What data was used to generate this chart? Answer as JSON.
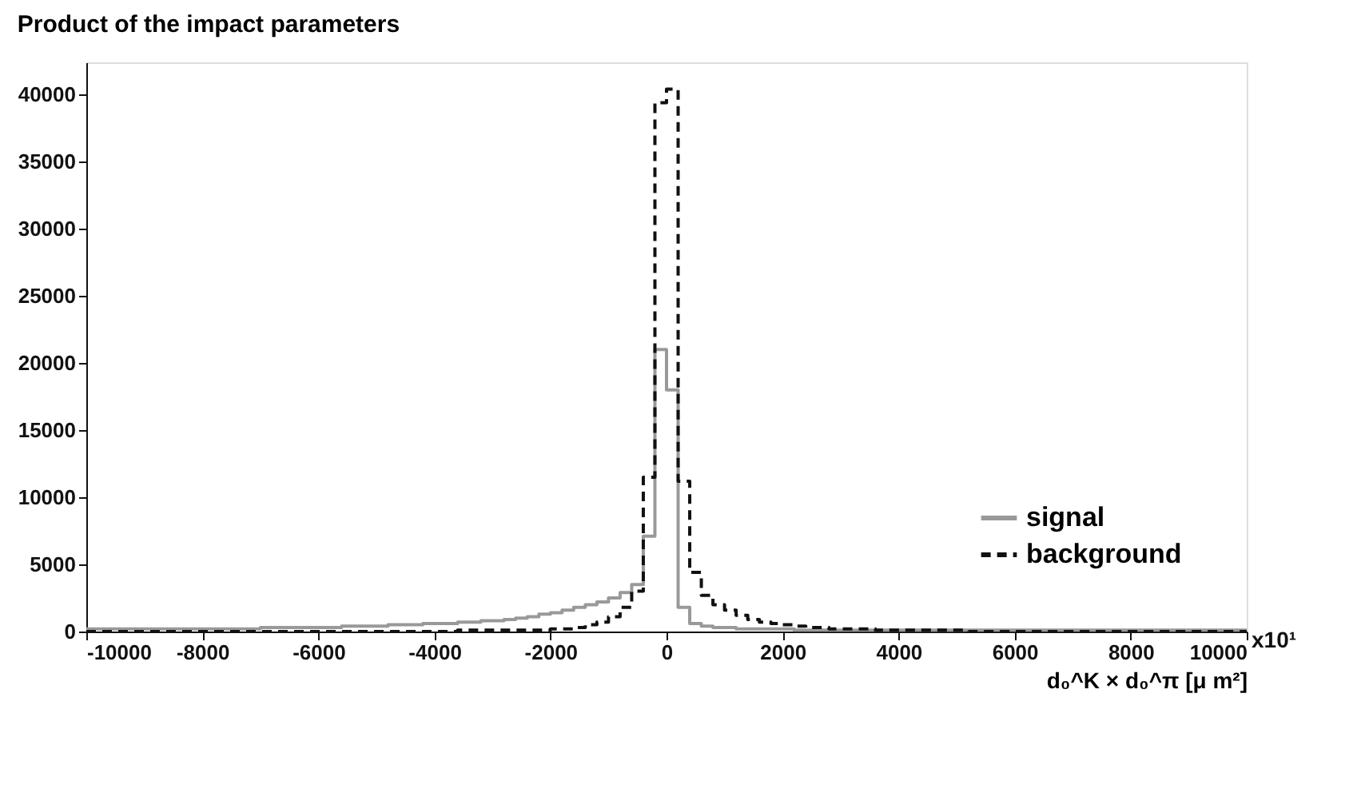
{
  "chart_data": {
    "type": "histogram",
    "title": "Product of the impact parameters",
    "xlabel": "d₀^K × d₀^π [μ m²]",
    "annotations": [
      "x10¹"
    ],
    "bins": [
      -10000,
      -9800,
      -9600,
      -9400,
      -9200,
      -9000,
      -8800,
      -8600,
      -8400,
      -8200,
      -8000,
      -7800,
      -7600,
      -7400,
      -7200,
      -7000,
      -6800,
      -6600,
      -6400,
      -6200,
      -6000,
      -5800,
      -5600,
      -5400,
      -5200,
      -5000,
      -4800,
      -4600,
      -4400,
      -4200,
      -4000,
      -3800,
      -3600,
      -3400,
      -3200,
      -3000,
      -2800,
      -2600,
      -2400,
      -2200,
      -2000,
      -1800,
      -1600,
      -1400,
      -1200,
      -1000,
      -800,
      -600,
      -400,
      -200,
      0,
      200,
      400,
      600,
      800,
      1000,
      1200,
      1400,
      1600,
      1800,
      2000,
      2200,
      2400,
      2600,
      2800,
      3000,
      3200,
      3400,
      3600,
      3800,
      4000,
      4200,
      4400,
      4600,
      4800,
      5000,
      5200,
      5400,
      5600,
      5800,
      6000,
      6200,
      6400,
      6600,
      6800,
      7000,
      7200,
      7400,
      7600,
      7800,
      8000,
      8200,
      8400,
      8600,
      8800,
      9000,
      9200,
      9400,
      9600,
      9800,
      10000
    ],
    "series": [
      {
        "name": "signal",
        "color": "#999999",
        "line_style": "solid",
        "values": [
          200,
          200,
          200,
          200,
          200,
          200,
          200,
          200,
          200,
          200,
          200,
          200,
          200,
          200,
          200,
          300,
          300,
          300,
          300,
          300,
          300,
          300,
          400,
          400,
          400,
          400,
          500,
          500,
          500,
          600,
          600,
          600,
          700,
          700,
          800,
          800,
          900,
          1000,
          1100,
          1300,
          1400,
          1600,
          1800,
          2000,
          2200,
          2500,
          2900,
          3500,
          7100,
          21000,
          18000,
          1800,
          600,
          400,
          300,
          300,
          200,
          200,
          200,
          200,
          200,
          100,
          100,
          100,
          100,
          100,
          100,
          100,
          100,
          100,
          100,
          100,
          100,
          100,
          100,
          100,
          100,
          100,
          100,
          100,
          100,
          100,
          100,
          100,
          100,
          100,
          100,
          100,
          100,
          100,
          100,
          100,
          100,
          100,
          100,
          100,
          100,
          100,
          100,
          100
        ]
      },
      {
        "name": "background",
        "color": "#111111",
        "line_style": "dashed",
        "values": [
          0,
          0,
          0,
          0,
          0,
          0,
          0,
          0,
          0,
          0,
          0,
          0,
          0,
          0,
          0,
          0,
          0,
          0,
          0,
          0,
          0,
          0,
          0,
          0,
          0,
          0,
          0,
          0,
          0,
          0,
          0,
          0,
          100,
          100,
          100,
          100,
          100,
          100,
          100,
          100,
          200,
          200,
          300,
          500,
          700,
          1100,
          1800,
          3000,
          11500,
          39400,
          40400,
          11200,
          4400,
          2700,
          2000,
          1600,
          1200,
          900,
          700,
          600,
          500,
          400,
          300,
          300,
          200,
          200,
          200,
          200,
          100,
          100,
          100,
          100,
          100,
          100,
          100,
          100,
          0,
          0,
          0,
          0,
          0,
          0,
          0,
          0,
          0,
          0,
          0,
          0,
          0,
          0,
          0,
          0,
          0,
          0,
          0,
          0,
          0,
          0,
          0,
          0
        ]
      }
    ],
    "xlim": [
      -10000,
      10000
    ],
    "xticks": [
      -10000,
      -8000,
      -6000,
      -4000,
      -2000,
      0,
      2000,
      4000,
      6000,
      8000,
      10000
    ],
    "ylim": [
      0,
      42400
    ],
    "yticks": [
      0,
      5000,
      10000,
      15000,
      20000,
      25000,
      30000,
      35000,
      40000
    ],
    "grid": false,
    "legend": "bottom right"
  }
}
